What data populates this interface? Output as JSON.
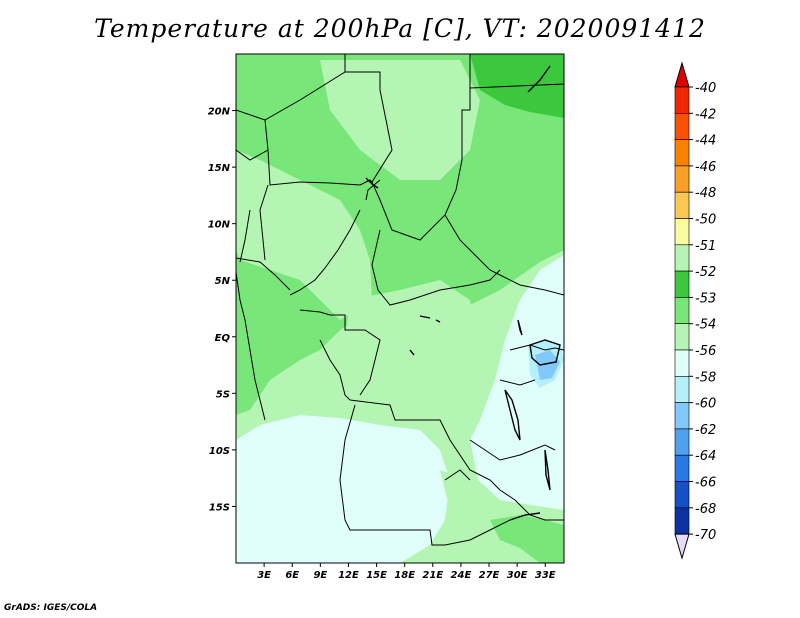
{
  "title": "Temperature at 200hPa [C], VT: 2020091412",
  "credit": "GrADS: IGES/COLA",
  "map": {
    "lat_range": [
      -20,
      25
    ],
    "lon_range": [
      0,
      35
    ],
    "lat_ticks": [
      {
        "value": 20,
        "label": "20N"
      },
      {
        "value": 15,
        "label": "15N"
      },
      {
        "value": 10,
        "label": "10N"
      },
      {
        "value": 5,
        "label": "5N"
      },
      {
        "value": 0,
        "label": "EQ"
      },
      {
        "value": -5,
        "label": "5S"
      },
      {
        "value": -10,
        "label": "10S"
      },
      {
        "value": -15,
        "label": "15S"
      }
    ],
    "lon_ticks": [
      {
        "value": 3,
        "label": "3E"
      },
      {
        "value": 6,
        "label": "6E"
      },
      {
        "value": 9,
        "label": "9E"
      },
      {
        "value": 12,
        "label": "12E"
      },
      {
        "value": 15,
        "label": "15E"
      },
      {
        "value": 18,
        "label": "18E"
      },
      {
        "value": 21,
        "label": "21E"
      },
      {
        "value": 24,
        "label": "24E"
      },
      {
        "value": 27,
        "label": "27E"
      },
      {
        "value": 30,
        "label": "30E"
      },
      {
        "value": 33,
        "label": "33E"
      }
    ],
    "field_colors": {
      "c52": "#3cc83c",
      "c53": "#78e678",
      "c54": "#b4f5b4",
      "c56": "#e0fffa",
      "c58": "#b4f0fa",
      "c60": "#82c8fa"
    }
  },
  "colorbar": {
    "labels": [
      "-40",
      "-42",
      "-44",
      "-46",
      "-48",
      "-50",
      "-51",
      "-52",
      "-53",
      "-54",
      "-56",
      "-58",
      "-60",
      "-62",
      "-64",
      "-66",
      "-68",
      "-70"
    ],
    "top_color": "#dc0000",
    "bottom_color": "#e6dcfa",
    "colors": [
      "#f02800",
      "#fa5000",
      "#fa8200",
      "#faa028",
      "#fac850",
      "#fafaa0",
      "#b4f5b4",
      "#3cc83c",
      "#78e678",
      "#b4f5b4",
      "#e0fffa",
      "#b4f0fa",
      "#82c8fa",
      "#50a0f0",
      "#2878e6",
      "#1450c8",
      "#0a32a0",
      "#000078",
      "#e6dcfa"
    ]
  }
}
